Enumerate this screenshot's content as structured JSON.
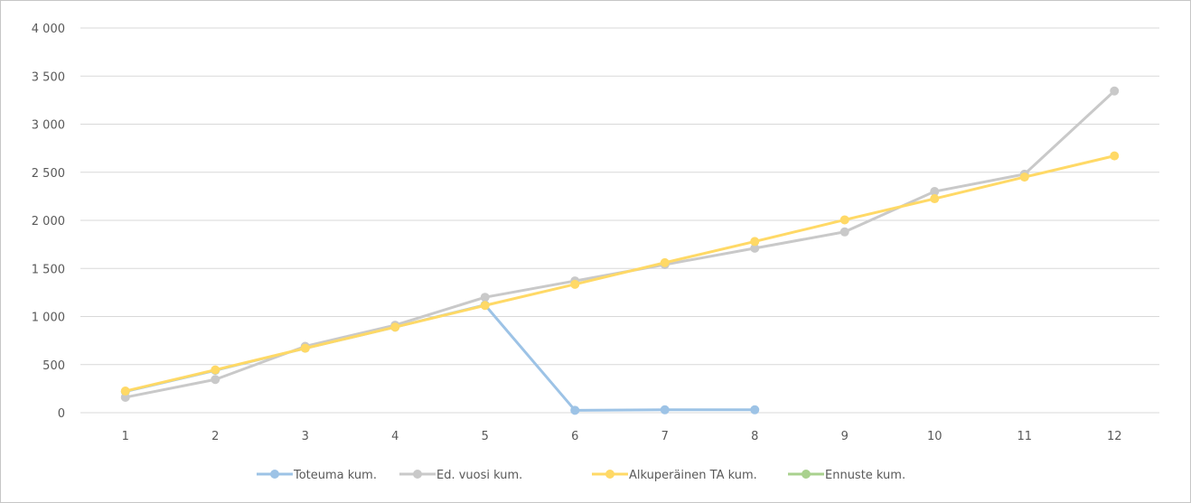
{
  "chart_data": {
    "type": "line",
    "title": "",
    "xlabel": "",
    "ylabel": "",
    "categories": [
      "1",
      "2",
      "3",
      "4",
      "5",
      "6",
      "7",
      "8",
      "9",
      "10",
      "11",
      "12"
    ],
    "ylim": [
      0,
      4000
    ],
    "yticks": [
      0,
      500,
      1000,
      1500,
      2000,
      2500,
      3000,
      3500,
      4000
    ],
    "ytick_labels": [
      "0",
      "500",
      "1 000",
      "1 500",
      "2 000",
      "2 500",
      "3 000",
      "3 500",
      "4 000"
    ],
    "grid": true,
    "legend_position": "bottom",
    "series": [
      {
        "name": "Toteuma kum.",
        "color": "#9dc3e6",
        "values": [
          220,
          440,
          670,
          890,
          1120,
          25,
          30,
          30,
          null,
          null,
          null,
          null
        ]
      },
      {
        "name": "Ed. vuosi kum.",
        "color": "#c9c9c9",
        "values": [
          160,
          345,
          690,
          910,
          1200,
          1370,
          1540,
          1710,
          1880,
          2300,
          2480,
          3345
        ]
      },
      {
        "name": "Alkuperäinen TA kum.",
        "color": "#ffd966",
        "values": [
          225,
          445,
          670,
          890,
          1115,
          1335,
          1560,
          1780,
          2005,
          2225,
          2450,
          2670
        ]
      },
      {
        "name": "Ennuste kum.",
        "color": "#a9d18e",
        "values": [
          null,
          null,
          null,
          null,
          null,
          null,
          null,
          null,
          null,
          null,
          null,
          null
        ]
      }
    ]
  }
}
